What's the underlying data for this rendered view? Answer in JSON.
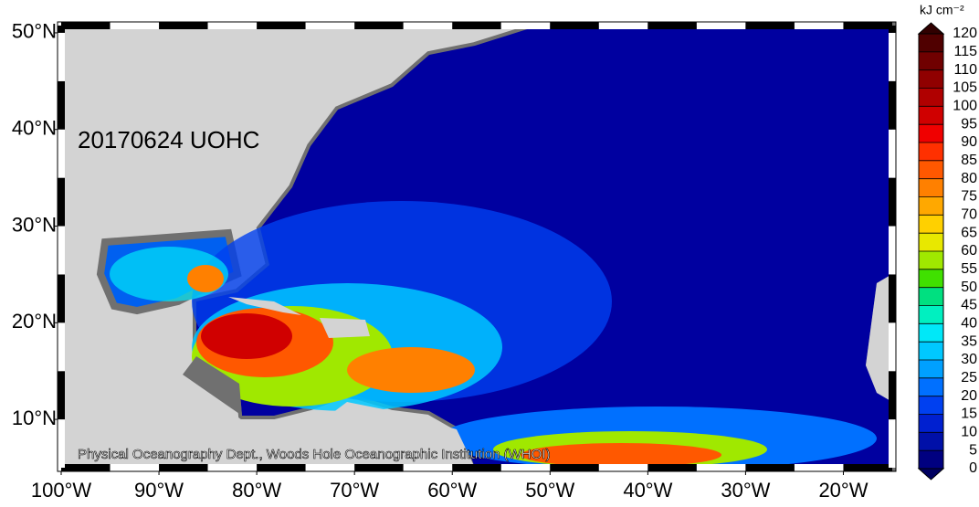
{
  "map": {
    "title": "20170624 UOHC",
    "credit": "Physical Oceanography Dept., Woods Hole Oceanographic Institution (WHOI)",
    "xlim": [
      -100,
      -15
    ],
    "ylim": [
      5,
      50.75
    ],
    "xticks": [
      {
        "value": -100,
        "label": "100°W"
      },
      {
        "value": -90,
        "label": "90°W"
      },
      {
        "value": -80,
        "label": "80°W"
      },
      {
        "value": -70,
        "label": "70°W"
      },
      {
        "value": -60,
        "label": "60°W"
      },
      {
        "value": -50,
        "label": "50°W"
      },
      {
        "value": -40,
        "label": "40°W"
      },
      {
        "value": -30,
        "label": "30°W"
      },
      {
        "value": -20,
        "label": "20°W"
      }
    ],
    "yticks": [
      {
        "value": 10,
        "label": "10°N"
      },
      {
        "value": 20,
        "label": "20°N"
      },
      {
        "value": 30,
        "label": "30°N"
      },
      {
        "value": 40,
        "label": "40°N"
      },
      {
        "value": 50,
        "label": "50°N"
      }
    ],
    "colorbar": {
      "label": "kJ cm⁻²",
      "lim": [
        0,
        120
      ],
      "ticks": [
        0,
        5,
        10,
        15,
        20,
        25,
        30,
        35,
        40,
        45,
        50,
        55,
        60,
        65,
        70,
        75,
        80,
        85,
        90,
        95,
        100,
        105,
        110,
        115,
        120
      ],
      "colors": [
        "#000080",
        "#0010a8",
        "#0020d0",
        "#0040f0",
        "#0070ff",
        "#00a0ff",
        "#00c8ff",
        "#00e8f8",
        "#00f0c0",
        "#00e080",
        "#40e000",
        "#a0e800",
        "#e8e800",
        "#ffd000",
        "#ffa800",
        "#ff8000",
        "#ff5800",
        "#ff3000",
        "#f00000",
        "#d00000",
        "#b00000",
        "#900000",
        "#700000",
        "#500000"
      ],
      "under_color": "#000060",
      "over_color": "#300000"
    }
  }
}
